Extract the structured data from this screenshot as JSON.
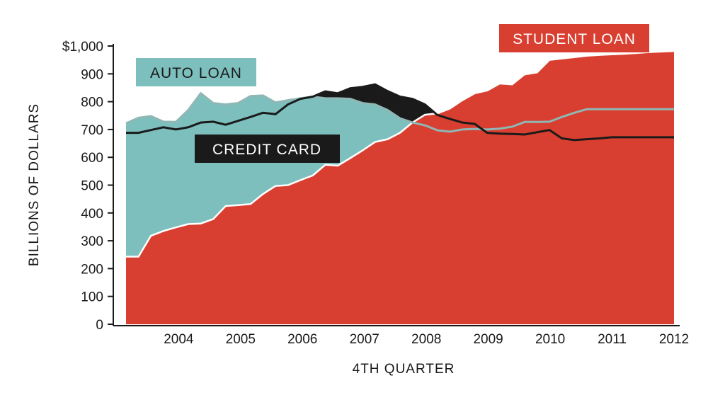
{
  "chart_data": {
    "type": "area",
    "xlabel": "4TH QUARTER",
    "ylabel": "BILLIONS OF DOLLARS",
    "ylim": [
      0,
      1000
    ],
    "y_ticks": [
      {
        "value": 0,
        "label": "0"
      },
      {
        "value": 100,
        "label": "100"
      },
      {
        "value": 200,
        "label": "200"
      },
      {
        "value": 300,
        "label": "300"
      },
      {
        "value": 400,
        "label": "400"
      },
      {
        "value": 500,
        "label": "500"
      },
      {
        "value": 600,
        "label": "600"
      },
      {
        "value": 700,
        "label": "700"
      },
      {
        "value": 800,
        "label": "800"
      },
      {
        "value": 900,
        "label": "900"
      },
      {
        "value": 1000,
        "label": "$1,000"
      }
    ],
    "x_ticks": [
      {
        "value": 2004,
        "label": "2004"
      },
      {
        "value": 2005,
        "label": "2005"
      },
      {
        "value": 2006,
        "label": "2006"
      },
      {
        "value": 2007,
        "label": "2007"
      },
      {
        "value": 2008,
        "label": "2008"
      },
      {
        "value": 2009,
        "label": "2009"
      },
      {
        "value": 2010,
        "label": "2010"
      },
      {
        "value": 2011,
        "label": "2011"
      },
      {
        "value": 2012,
        "label": "2012"
      }
    ],
    "x": [
      2003.0,
      2003.2,
      2003.4,
      2003.6,
      2003.8,
      2004.0,
      2004.2,
      2004.4,
      2004.6,
      2004.8,
      2005.0,
      2005.2,
      2005.4,
      2005.6,
      2005.8,
      2006.0,
      2006.2,
      2006.4,
      2006.6,
      2006.8,
      2007.0,
      2007.2,
      2007.4,
      2007.6,
      2007.8,
      2008.0,
      2008.2,
      2008.4,
      2008.6,
      2008.8,
      2009.0,
      2009.2,
      2009.4,
      2009.6,
      2009.8,
      2010.0,
      2010.2,
      2010.4,
      2010.6,
      2010.8,
      2011.0,
      2011.2,
      2011.4,
      2011.6,
      2011.8
    ],
    "series": [
      {
        "name": "STUDENT LOAN",
        "color": "#d93f31",
        "style": "area",
        "values": [
          243,
          243,
          318,
          335,
          348,
          360,
          362,
          378,
          425,
          428,
          432,
          468,
          497,
          500,
          518,
          535,
          573,
          570,
          597,
          625,
          655,
          665,
          688,
          725,
          753,
          758,
          775,
          805,
          830,
          840,
          865,
          862,
          898,
          905,
          950,
          955,
          960,
          965,
          968,
          970,
          972,
          975,
          978,
          980,
          982
        ]
      },
      {
        "name": "AUTO LOAN",
        "color": "#7cbfbd",
        "style": "area",
        "values": [
          722,
          742,
          748,
          728,
          727,
          770,
          830,
          795,
          790,
          795,
          820,
          822,
          797,
          805,
          812,
          818,
          812,
          812,
          810,
          795,
          790,
          770,
          740,
          725,
          715,
          697,
          692,
          700,
          702,
          700,
          703,
          710,
          727,
          727,
          728,
          745,
          760,
          773,
          773,
          773,
          773,
          773,
          773,
          773,
          773
        ]
      },
      {
        "name": "CREDIT CARD",
        "color": "#1a1a1a",
        "style": "line",
        "values": [
          688,
          688,
          698,
          708,
          700,
          708,
          725,
          728,
          717,
          731,
          745,
          760,
          755,
          790,
          810,
          818,
          837,
          830,
          848,
          853,
          862,
          838,
          818,
          810,
          790,
          752,
          738,
          725,
          720,
          688,
          685,
          684,
          682,
          690,
          698,
          668,
          662,
          665,
          668,
          672,
          672,
          672,
          672,
          672,
          672
        ]
      }
    ],
    "grid": false
  },
  "legend": {
    "student": {
      "label": "STUDENT LOAN",
      "bg": "#d93f31",
      "fg": "#ffffff"
    },
    "auto": {
      "label": "AUTO LOAN",
      "bg": "#7cbfbd",
      "fg": "#1a1a1a"
    },
    "credit": {
      "label": "CREDIT CARD",
      "bg": "#1a1a1a",
      "fg": "#ffffff"
    }
  }
}
